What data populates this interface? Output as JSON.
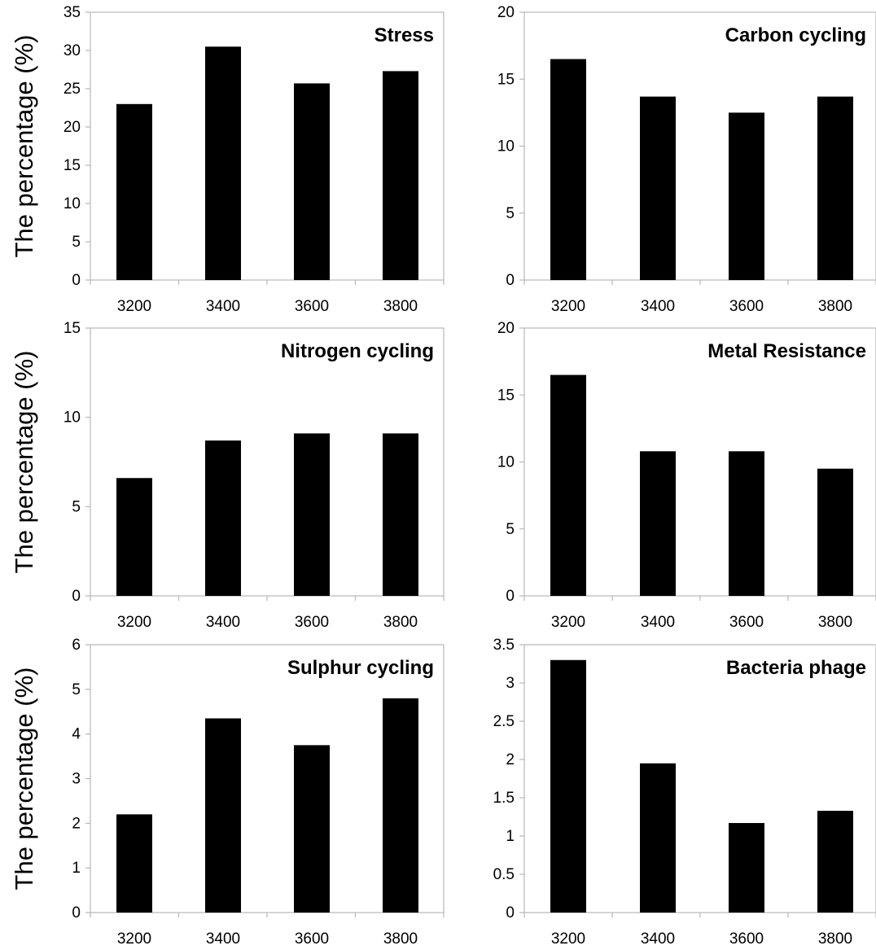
{
  "figure": {
    "ylabel": "The percentage (%)"
  },
  "chart_data": [
    {
      "type": "bar",
      "title": "Stress",
      "categories": [
        "3200",
        "3400",
        "3600",
        "3800"
      ],
      "values": [
        23,
        30.5,
        25.7,
        27.3
      ],
      "ylim": [
        0,
        35
      ],
      "yticks": [
        "0",
        "5",
        "10",
        "15",
        "20",
        "25",
        "30",
        "35"
      ],
      "ylabel": "The percentage (%)",
      "bar_color": "#000000",
      "grid": false
    },
    {
      "type": "bar",
      "title": "Carbon cycling",
      "categories": [
        "3200",
        "3400",
        "3600",
        "3800"
      ],
      "values": [
        16.5,
        13.7,
        12.5,
        13.7
      ],
      "ylim": [
        0,
        20
      ],
      "yticks": [
        "0",
        "5",
        "10",
        "15",
        "20"
      ],
      "ylabel": "",
      "bar_color": "#000000",
      "grid": false
    },
    {
      "type": "bar",
      "title": "Nitrogen cycling",
      "categories": [
        "3200",
        "3400",
        "3600",
        "3800"
      ],
      "values": [
        6.6,
        8.7,
        9.1,
        9.1
      ],
      "ylim": [
        0,
        15
      ],
      "yticks": [
        "0",
        "5",
        "10",
        "15"
      ],
      "ylabel": "The percentage (%)",
      "bar_color": "#000000",
      "grid": false
    },
    {
      "type": "bar",
      "title": "Metal Resistance",
      "categories": [
        "3200",
        "3400",
        "3600",
        "3800"
      ],
      "values": [
        16.5,
        10.8,
        10.8,
        9.5
      ],
      "ylim": [
        0,
        20
      ],
      "yticks": [
        "0",
        "5",
        "10",
        "15",
        "20"
      ],
      "ylabel": "",
      "bar_color": "#000000",
      "grid": false
    },
    {
      "type": "bar",
      "title": "Sulphur cycling",
      "categories": [
        "3200",
        "3400",
        "3600",
        "3800"
      ],
      "values": [
        2.2,
        4.35,
        3.75,
        4.8
      ],
      "ylim": [
        0,
        6
      ],
      "yticks": [
        "0",
        "1",
        "2",
        "3",
        "4",
        "5",
        "6"
      ],
      "ylabel": "The percentage (%)",
      "bar_color": "#000000",
      "grid": false
    },
    {
      "type": "bar",
      "title": "Bacteria phage",
      "categories": [
        "3200",
        "3400",
        "3600",
        "3800"
      ],
      "values": [
        3.3,
        1.95,
        1.17,
        1.33
      ],
      "ylim": [
        0,
        3.5
      ],
      "yticks": [
        "0",
        "0.5",
        "1",
        "1.5",
        "2",
        "2.5",
        "3",
        "3.5"
      ],
      "ylabel": "",
      "bar_color": "#000000",
      "grid": false
    }
  ]
}
